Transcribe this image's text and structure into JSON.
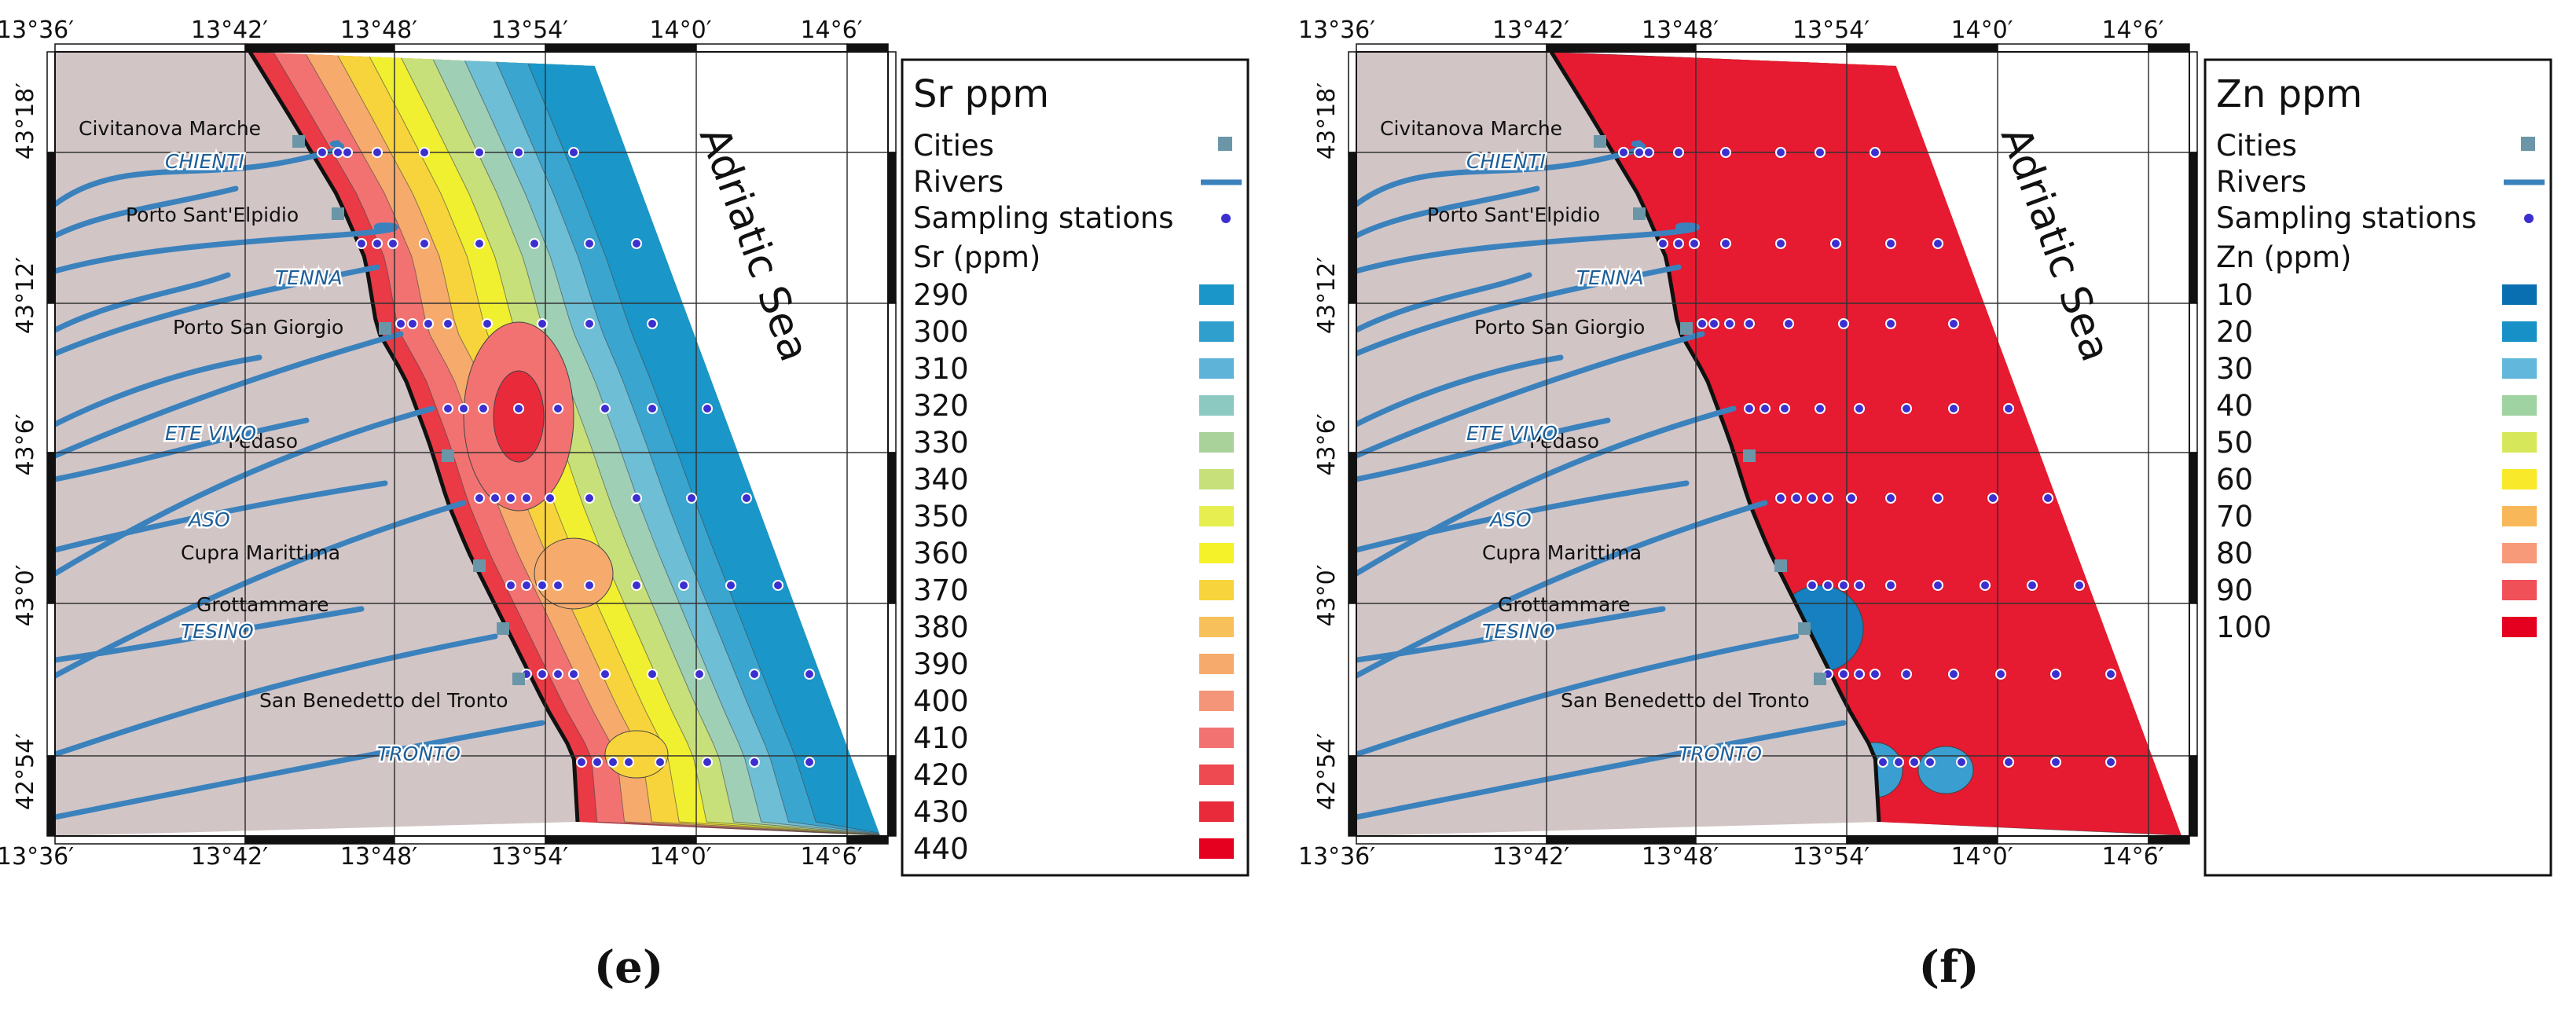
{
  "panels": [
    {
      "caption": "(e)",
      "legend": {
        "title": "Sr ppm",
        "cities_label": "Cities",
        "rivers_label": "Rivers",
        "stations_label": "Sampling stations",
        "scale_title": "Sr (ppm)",
        "scale_values": [
          "290",
          "300",
          "310",
          "320",
          "330",
          "340",
          "350",
          "360",
          "370",
          "380",
          "390",
          "400",
          "410",
          "420",
          "430",
          "440"
        ],
        "scale_colors": [
          "#1a96c8",
          "#2f9fcd",
          "#5eb3d8",
          "#8cc9c0",
          "#a8d29a",
          "#c8e07a",
          "#e6ee50",
          "#f6f22a",
          "#f8d43c",
          "#f8c05a",
          "#f6ab6c",
          "#f4957a",
          "#f27272",
          "#ee4a52",
          "#e82a3a",
          "#e4001e"
        ]
      },
      "contour_levels": [
        "#1a96c8",
        "#3aa6d0",
        "#6ebed6",
        "#9fd0b6",
        "#c8e07a",
        "#f1f030",
        "#f8d43c",
        "#f6ab6c",
        "#f27272",
        "#ea3a45"
      ]
    },
    {
      "caption": "(f)",
      "legend": {
        "title": "Zn ppm",
        "cities_label": "Cities",
        "rivers_label": "Rivers",
        "stations_label": "Sampling stations",
        "scale_title": "Zn (ppm)",
        "scale_values": [
          "10",
          "20",
          "30",
          "40",
          "50",
          "60",
          "70",
          "80",
          "90",
          "100"
        ],
        "scale_colors": [
          "#0a6fb0",
          "#1790c8",
          "#62b8dc",
          "#9fd3a2",
          "#d6e85a",
          "#f8ea2a",
          "#f8b85a",
          "#f79a7a",
          "#f05058",
          "#e4001e"
        ]
      },
      "contour_levels": [
        "#1680c0",
        "#3a9ed0",
        "#8cc8d0",
        "#d8e860",
        "#f8e830",
        "#f8b85a",
        "#f4857a",
        "#ee4450",
        "#e61a30"
      ]
    }
  ],
  "map": {
    "lon_ticks": [
      "13°36′",
      "13°42′",
      "13°48′",
      "13°54′",
      "14°0′",
      "14°6′"
    ],
    "lat_ticks": [
      "43°18′",
      "43°12′",
      "43°6′",
      "43°0′",
      "42°54′"
    ],
    "sea_label": "Adriatic Sea",
    "cities": [
      "Civitanova Marche",
      "Porto Sant'Elpidio",
      "Porto San Giorgio",
      "Pedaso",
      "Cupra Marittima",
      "Grottammare",
      "San Benedetto del Tronto"
    ],
    "rivers": [
      "CHIENTI",
      "TENNA",
      "ETE VIVO",
      "ASO",
      "TESINO",
      "TRONTO"
    ]
  },
  "colors": {
    "land": "#d2c5c6",
    "coast": "#111111",
    "river": "#3b82bd",
    "city_marker": "#6a96a8",
    "station": "#3c2fd0"
  }
}
